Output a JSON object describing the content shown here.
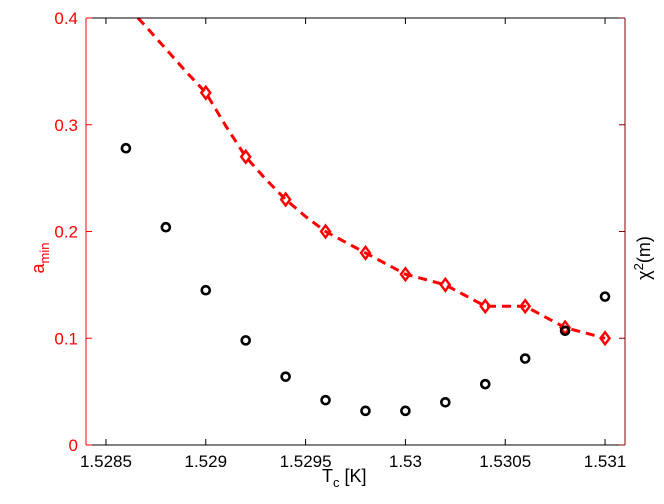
{
  "chart_data": {
    "type": "line",
    "xlabel": "T",
    "xlabel_sub": "c",
    "xlabel_unit": " [K]",
    "ylabel": "a",
    "ylabel_sub": "min",
    "y2label_base": "χ",
    "y2label_sup": "2",
    "y2label_tail": "(m)",
    "xlim": [
      1.5284,
      1.5311
    ],
    "ylim": [
      0,
      0.4
    ],
    "x_ticks": [
      1.5285,
      1.529,
      1.5295,
      1.53,
      1.5305,
      1.531
    ],
    "x_tick_labels": [
      "1.5285",
      "1.529",
      "1.5295",
      "1.53",
      "1.5305",
      "1.531"
    ],
    "y_ticks": [
      0,
      0.1,
      0.2,
      0.3,
      0.4
    ],
    "y_tick_labels": [
      "0",
      "0.1",
      "0.2",
      "0.3",
      "0.4"
    ],
    "grid": false,
    "colors": {
      "a_min": "#ff0000",
      "chi2": "#000000",
      "axis_left": "#ff0000",
      "axis_right": "#800000",
      "axis_bottom": "#000000"
    },
    "series": [
      {
        "marker": "diamond",
        "line": "dashed",
        "fit_curve": {
          "x": [
            1.52866,
            1.5287,
            1.5288,
            1.5289,
            1.529,
            1.5291,
            1.5292,
            1.5293,
            1.5294,
            1.5295,
            1.5296,
            1.5297,
            1.5298,
            1.5299,
            1.53,
            1.5301,
            1.5302,
            1.5303,
            1.5304,
            1.5305,
            1.5306,
            1.5307,
            1.5308,
            1.5309,
            1.531
          ],
          "y": [
            0.4,
            0.392,
            0.371,
            0.35,
            0.33,
            0.299,
            0.27,
            0.249,
            0.23,
            0.214,
            0.2,
            0.19,
            0.18,
            0.17,
            0.16,
            0.155,
            0.15,
            0.14,
            0.13,
            0.13,
            0.13,
            0.12,
            0.11,
            0.105,
            0.1
          ]
        },
        "x": [
          1.529,
          1.5292,
          1.5294,
          1.5296,
          1.5298,
          1.53,
          1.5302,
          1.5304,
          1.5306,
          1.5308,
          1.531
        ],
        "values": [
          0.33,
          0.27,
          0.23,
          0.2,
          0.18,
          0.16,
          0.15,
          0.13,
          0.13,
          0.11,
          0.1
        ]
      },
      {
        "marker": "circle",
        "line": "none",
        "x": [
          1.5286,
          1.5288,
          1.529,
          1.5292,
          1.5294,
          1.5296,
          1.5298,
          1.53,
          1.5302,
          1.5304,
          1.5306,
          1.5308,
          1.531
        ],
        "values": [
          0.278,
          0.204,
          0.145,
          0.098,
          0.064,
          0.042,
          0.032,
          0.032,
          0.04,
          0.057,
          0.081,
          0.107,
          0.139
        ]
      }
    ]
  }
}
